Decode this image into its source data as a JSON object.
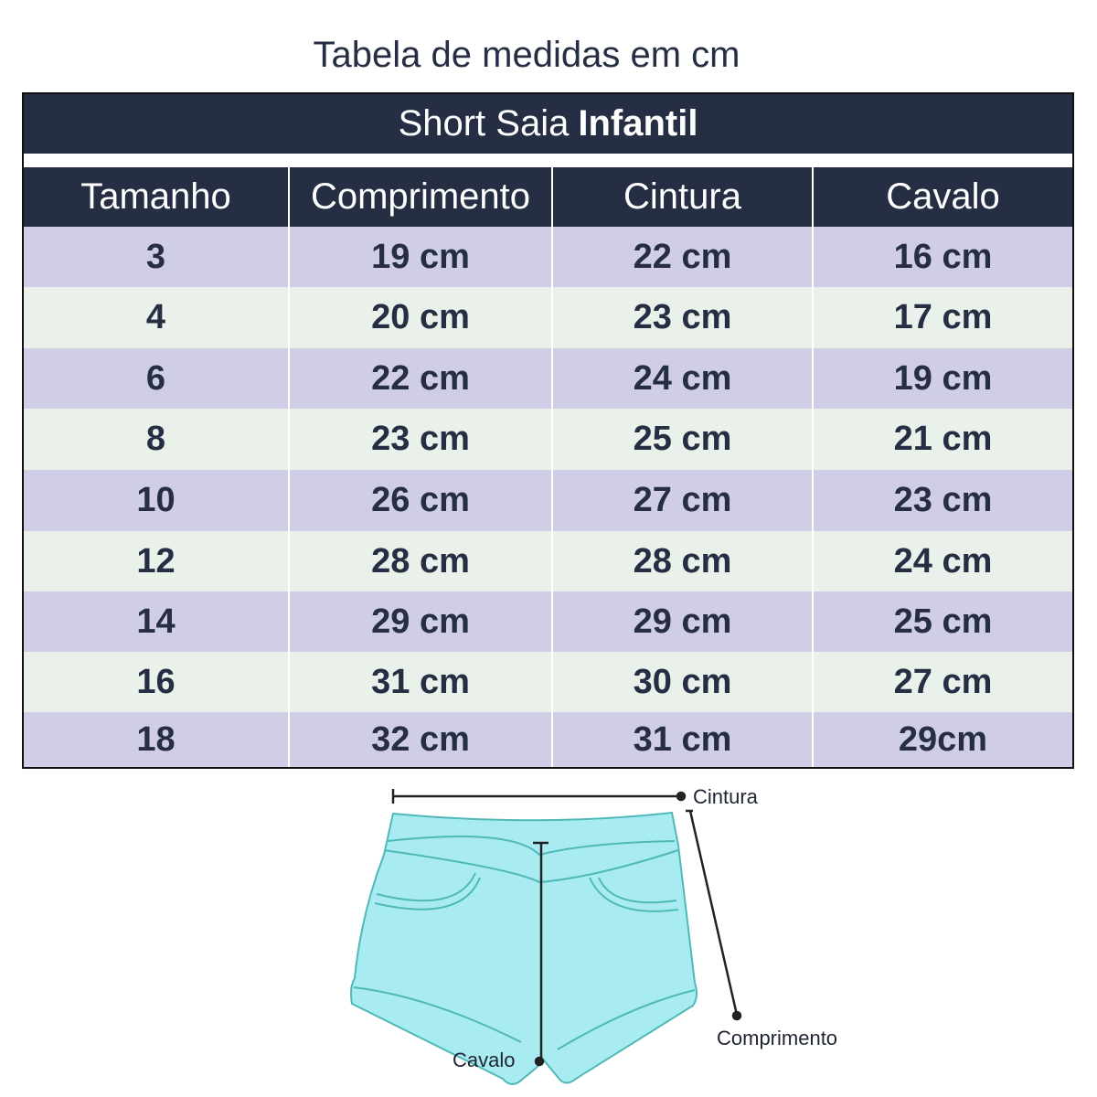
{
  "caption": "Tabela de medidas em cm",
  "table": {
    "title_regular": "Short Saia",
    "title_bold": "Infantil",
    "headers": [
      "Tamanho",
      "Comprimento",
      "Cintura",
      "Cavalo"
    ],
    "rows": [
      [
        "3",
        "19 cm",
        "22 cm",
        "16 cm"
      ],
      [
        "4",
        "20 cm",
        "23 cm",
        "17 cm"
      ],
      [
        "6",
        "22 cm",
        "24 cm",
        "19 cm"
      ],
      [
        "8",
        "23 cm",
        "25 cm",
        "21 cm"
      ],
      [
        "10",
        "26 cm",
        "27 cm",
        "23 cm"
      ],
      [
        "12",
        "28 cm",
        "28 cm",
        "24 cm"
      ],
      [
        "14",
        "29 cm",
        "29 cm",
        "25 cm"
      ],
      [
        "16",
        "31 cm",
        "30 cm",
        "27 cm"
      ],
      [
        "18",
        "32 cm",
        "31 cm",
        "29cm"
      ]
    ]
  },
  "diagram": {
    "labels": {
      "waist": "Cintura",
      "length": "Comprimento",
      "crotch": "Cavalo"
    },
    "colors": {
      "shorts_fill": "#a8ecf2",
      "shorts_stroke": "#4fb8b8",
      "header": "#252e43",
      "row_odd": "#d0cde6",
      "row_even": "#eaf0ea"
    }
  }
}
